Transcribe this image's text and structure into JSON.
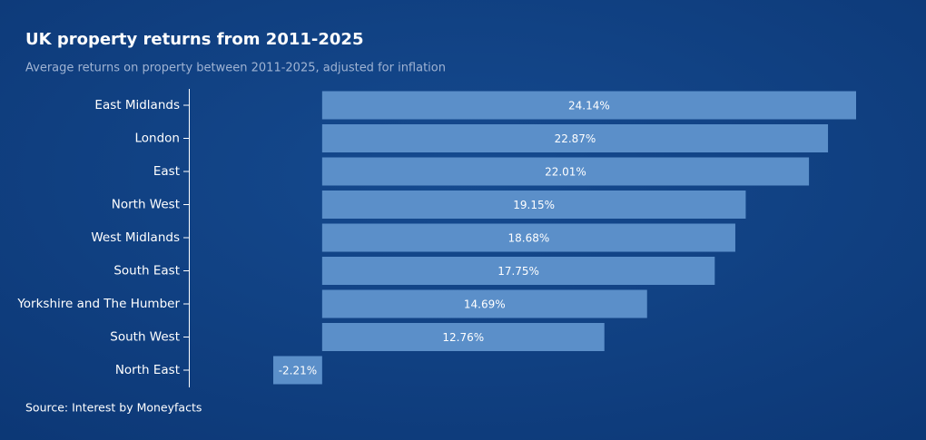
{
  "chart_data": {
    "type": "bar",
    "orientation": "horizontal",
    "title": "UK property returns from 2011-2025",
    "subtitle": "Average returns on property between 2011-2025, adjusted for inflation",
    "source": "Source: Interest by Moneyfacts",
    "categories": [
      "East Midlands",
      "London",
      "East",
      "North West",
      "West Midlands",
      "South East",
      "Yorkshire and The Humber",
      "South West",
      "North East"
    ],
    "values": [
      24.14,
      22.87,
      22.01,
      19.15,
      18.68,
      17.75,
      14.69,
      12.76,
      -2.21
    ],
    "value_labels": [
      "24.14%",
      "22.87%",
      "22.01%",
      "19.15%",
      "18.68%",
      "17.75%",
      "14.69%",
      "12.76%",
      "-2.21%"
    ],
    "color": "#5b8fc9"
  }
}
